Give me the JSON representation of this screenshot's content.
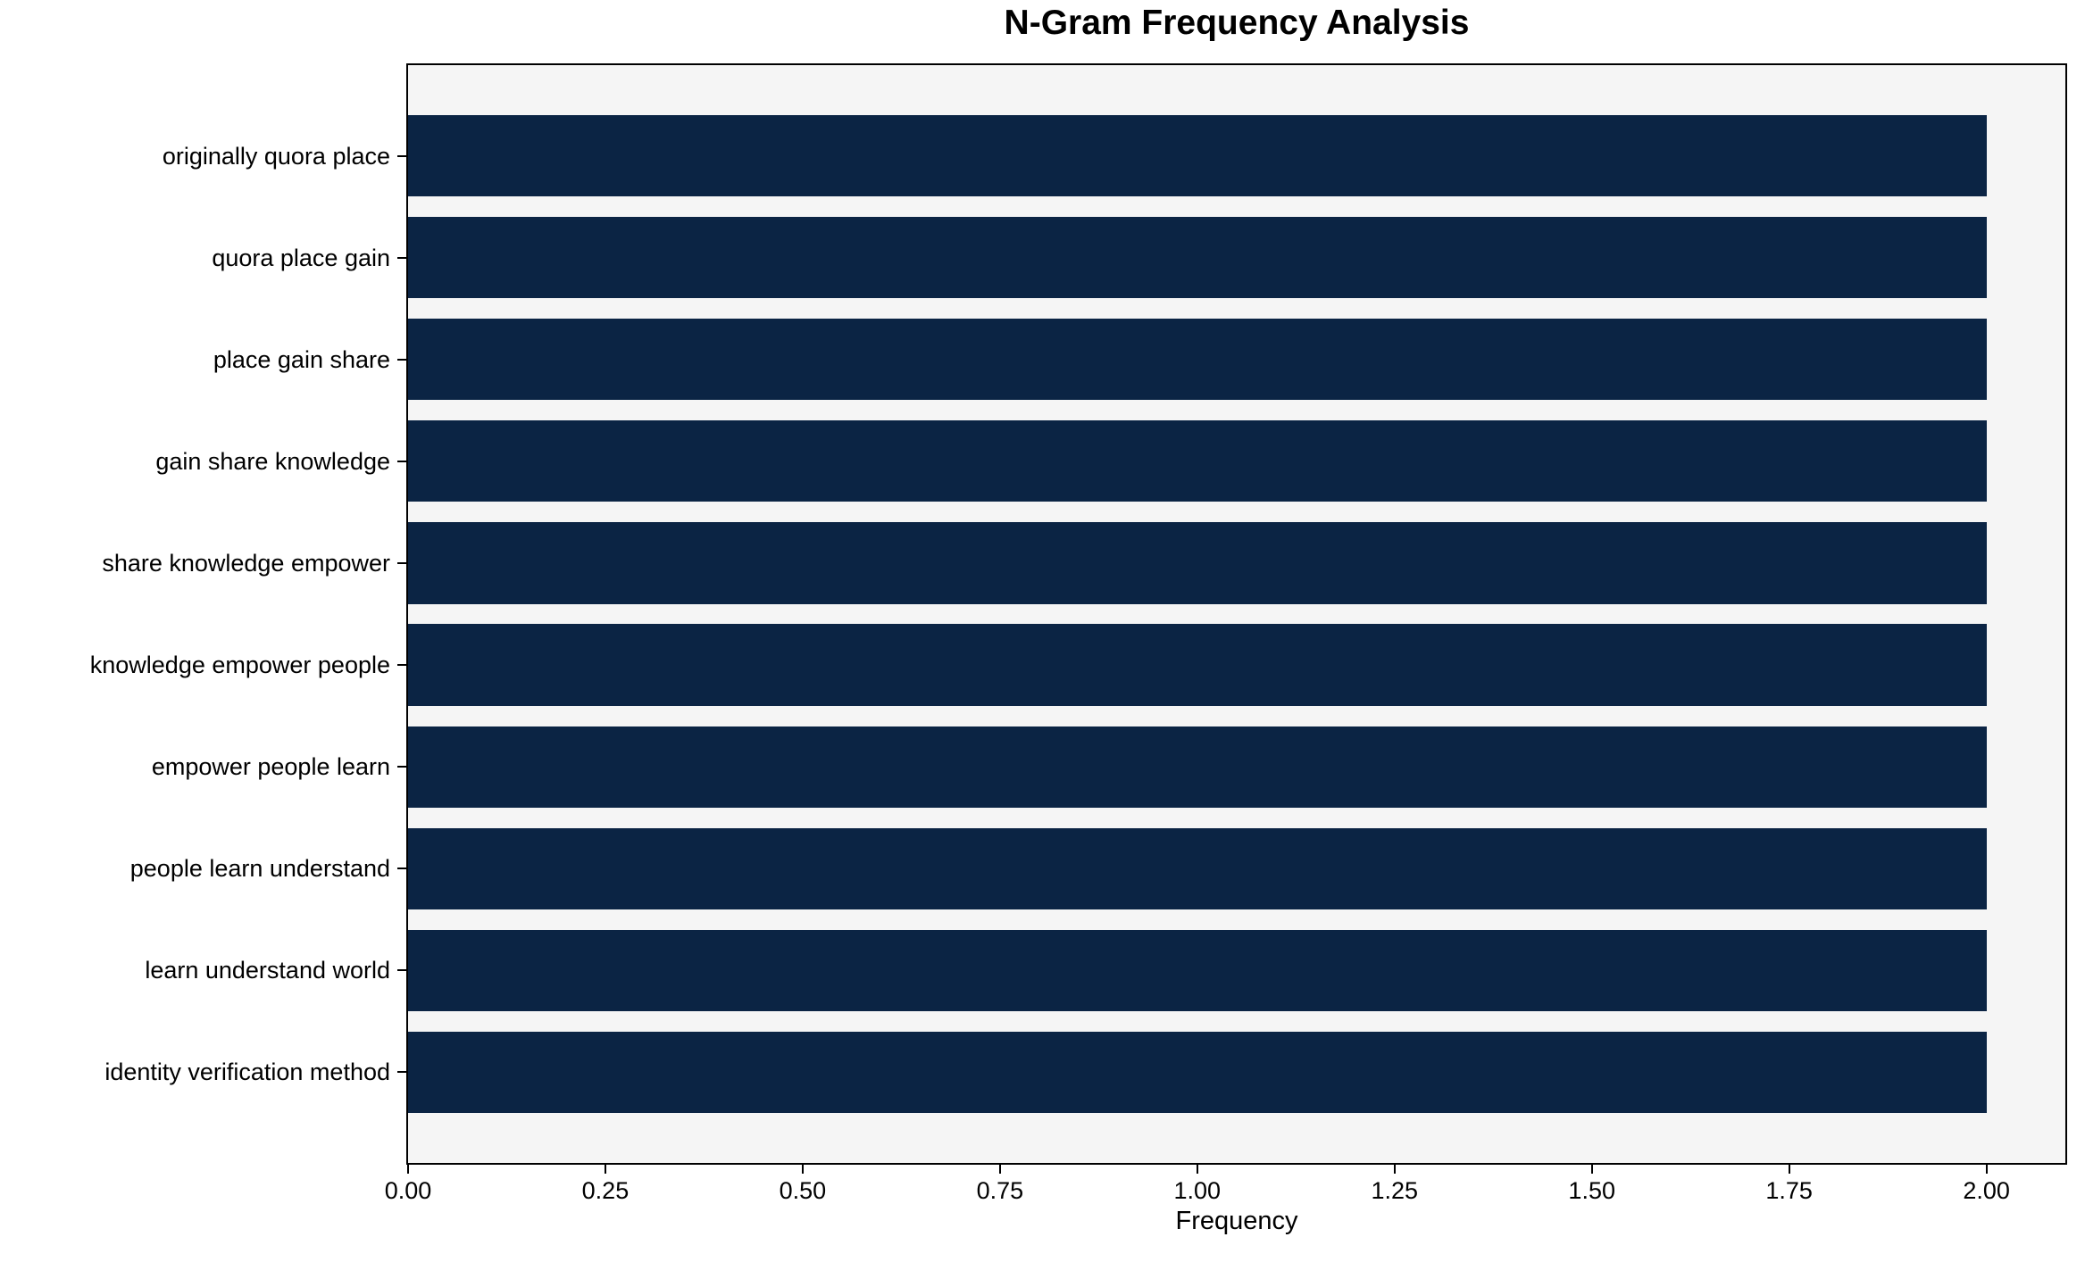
{
  "chart_data": {
    "type": "bar",
    "orientation": "horizontal",
    "title": "N-Gram Frequency Analysis",
    "xlabel": "Frequency",
    "ylabel": "",
    "categories": [
      "originally quora place",
      "quora place gain",
      "place gain share",
      "gain share knowledge",
      "share knowledge empower",
      "knowledge empower people",
      "empower people learn",
      "people learn understand",
      "learn understand world",
      "identity verification method"
    ],
    "values": [
      2,
      2,
      2,
      2,
      2,
      2,
      2,
      2,
      2,
      2
    ],
    "xlim": [
      0,
      2.1
    ],
    "xticks": [
      {
        "value": 0.0,
        "label": "0.00"
      },
      {
        "value": 0.25,
        "label": "0.25"
      },
      {
        "value": 0.5,
        "label": "0.50"
      },
      {
        "value": 0.75,
        "label": "0.75"
      },
      {
        "value": 1.0,
        "label": "1.00"
      },
      {
        "value": 1.25,
        "label": "1.25"
      },
      {
        "value": 1.5,
        "label": "1.50"
      },
      {
        "value": 1.75,
        "label": "1.75"
      },
      {
        "value": 2.0,
        "label": "2.00"
      }
    ],
    "grid": false,
    "legend": null,
    "colors": {
      "bar": "#0b2444",
      "plot_background": "#f5f5f5",
      "figure_background": "#ffffff",
      "spine": "#000000",
      "text": "#000000"
    }
  }
}
